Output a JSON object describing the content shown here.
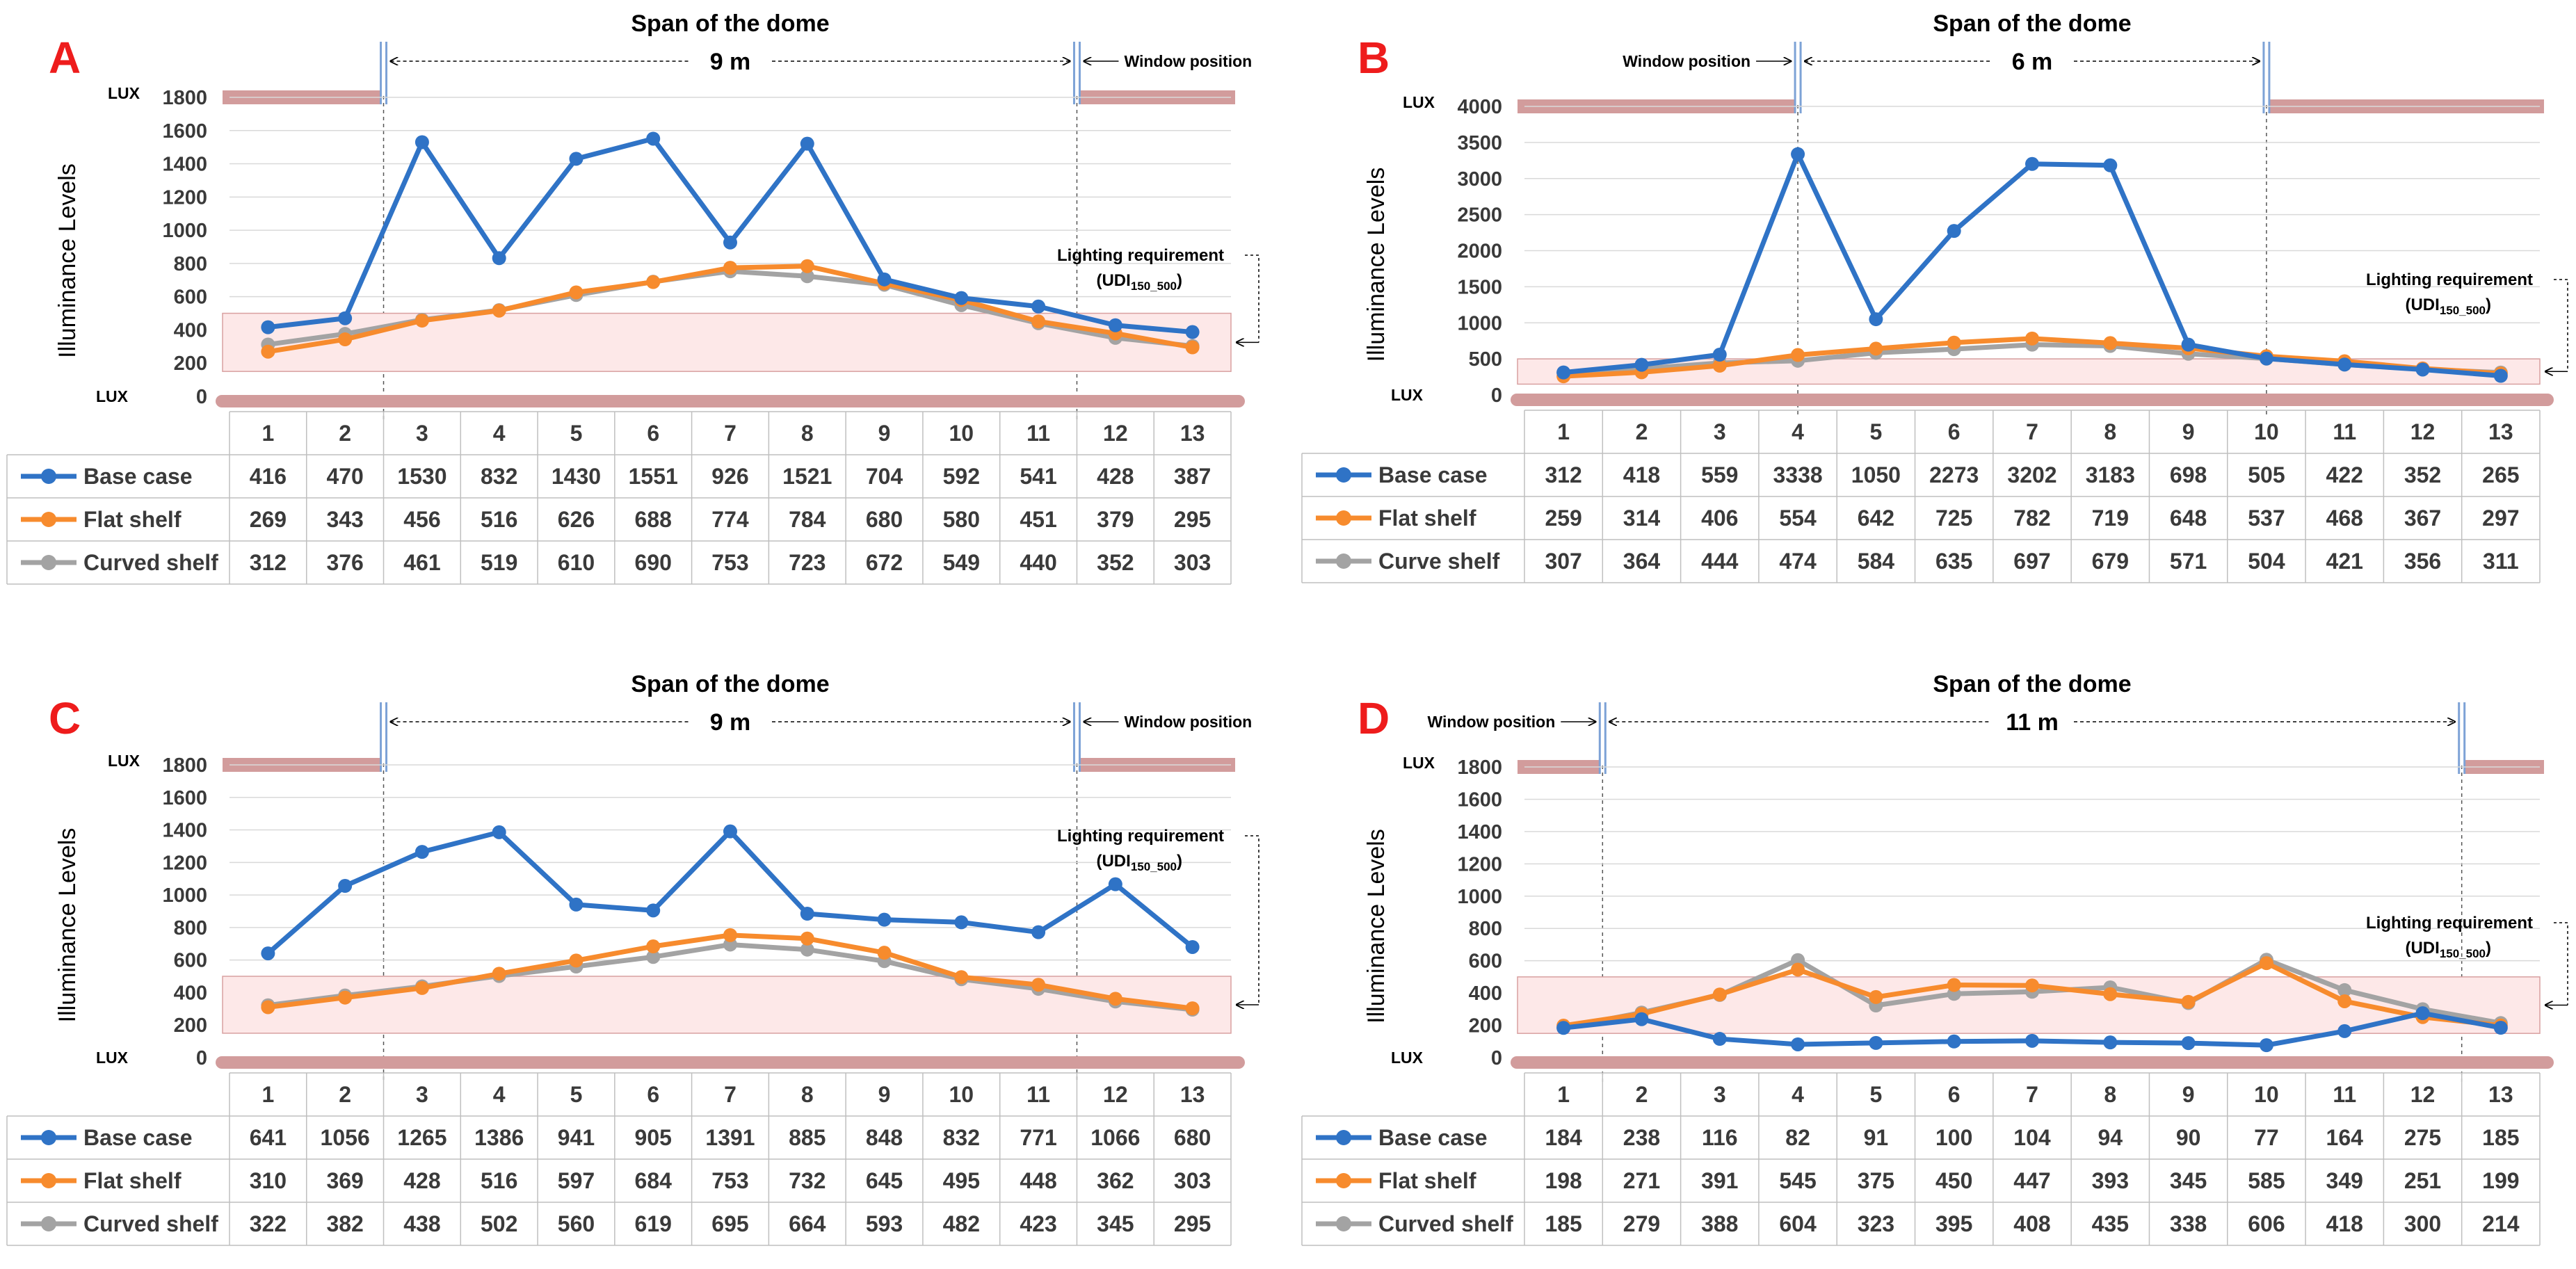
{
  "colors": {
    "base": "#2f73c6",
    "flat": "#f78b2d",
    "curved": "#a3a3a3",
    "wall": "#d29c9c",
    "band_fill": "#fde8e8",
    "band_stroke": "#d8a0a0",
    "grid": "#d9d9d9",
    "table_border": "#bfbfbf",
    "panel_letter": "#ee1c1c"
  },
  "chart_data": [
    {
      "panel": "A",
      "type": "line",
      "title": "Span of the dome",
      "span_label": "9 m",
      "window_label": "Window position",
      "window_side": "right",
      "lighting_label": "Lighting requirement",
      "udi_main": "(UDI",
      "udi_sub": "150_500",
      "udi_close": ")",
      "ylabel": "Illuminance Levels",
      "lux_label": "LUX",
      "ylim": [
        0,
        1800
      ],
      "yticks": [
        "0",
        "200",
        "400",
        "600",
        "800",
        "1000",
        "1200",
        "1400",
        "1600",
        "1800"
      ],
      "band": [
        150,
        500
      ],
      "window_points": [
        2.5,
        11.5
      ],
      "categories": [
        "1",
        "2",
        "3",
        "4",
        "5",
        "6",
        "7",
        "8",
        "9",
        "10",
        "11",
        "12",
        "13"
      ],
      "series": [
        {
          "name": "Base case",
          "key": "base",
          "values": [
            416,
            470,
            1530,
            832,
            1430,
            1551,
            926,
            1521,
            704,
            592,
            541,
            428,
            387
          ]
        },
        {
          "name": "Flat shelf",
          "key": "flat",
          "values": [
            269,
            343,
            456,
            516,
            626,
            688,
            774,
            784,
            680,
            580,
            451,
            379,
            295
          ]
        },
        {
          "name": "Curved shelf",
          "key": "curved",
          "values": [
            312,
            376,
            461,
            519,
            610,
            690,
            753,
            723,
            672,
            549,
            440,
            352,
            303
          ]
        }
      ]
    },
    {
      "panel": "B",
      "type": "line",
      "title": "Span of the dome",
      "span_label": "6 m",
      "window_label": "Window position",
      "window_side": "left",
      "lighting_label": "Lighting requirement",
      "udi_main": "(UDI",
      "udi_sub": "150_500",
      "udi_close": ")",
      "ylabel": "Illuminance Levels",
      "lux_label": "LUX",
      "ylim": [
        0,
        4000
      ],
      "yticks": [
        "0",
        "500",
        "1000",
        "1500",
        "2000",
        "2500",
        "3000",
        "3500",
        "4000"
      ],
      "band": [
        150,
        500
      ],
      "window_points": [
        4.0,
        10.0
      ],
      "categories": [
        "1",
        "2",
        "3",
        "4",
        "5",
        "6",
        "7",
        "8",
        "9",
        "10",
        "11",
        "12",
        "13"
      ],
      "series": [
        {
          "name": "Base case",
          "key": "base",
          "values": [
            312,
            418,
            559,
            3338,
            1050,
            2273,
            3202,
            3183,
            698,
            505,
            422,
            352,
            265
          ]
        },
        {
          "name": "Flat shelf",
          "key": "flat",
          "values": [
            259,
            314,
            406,
            554,
            642,
            725,
            782,
            719,
            648,
            537,
            468,
            367,
            297
          ]
        },
        {
          "name": "Curve shelf",
          "key": "curved",
          "values": [
            307,
            364,
            444,
            474,
            584,
            635,
            697,
            679,
            571,
            504,
            421,
            356,
            311
          ]
        }
      ]
    },
    {
      "panel": "C",
      "type": "line",
      "title": "Span of the dome",
      "span_label": "9 m",
      "window_label": "Window position",
      "window_side": "right",
      "lighting_label": "Lighting requirement",
      "udi_main": "(UDI",
      "udi_sub": "150_500",
      "udi_close": ")",
      "ylabel": "Illuminance Levels",
      "lux_label": "LUX",
      "ylim": [
        0,
        1800
      ],
      "yticks": [
        "0",
        "200",
        "400",
        "600",
        "800",
        "1000",
        "1200",
        "1400",
        "1600",
        "1800"
      ],
      "band": [
        150,
        500
      ],
      "window_points": [
        2.5,
        11.5
      ],
      "categories": [
        "1",
        "2",
        "3",
        "4",
        "5",
        "6",
        "7",
        "8",
        "9",
        "10",
        "11",
        "12",
        "13"
      ],
      "series": [
        {
          "name": "Base case",
          "key": "base",
          "values": [
            641,
            1056,
            1265,
            1386,
            941,
            905,
            1391,
            885,
            848,
            832,
            771,
            1066,
            680
          ]
        },
        {
          "name": "Flat shelf",
          "key": "flat",
          "values": [
            310,
            369,
            428,
            516,
            597,
            684,
            753,
            732,
            645,
            495,
            448,
            362,
            303
          ]
        },
        {
          "name": "Curved shelf",
          "key": "curved",
          "values": [
            322,
            382,
            438,
            502,
            560,
            619,
            695,
            664,
            593,
            482,
            423,
            345,
            295
          ]
        }
      ]
    },
    {
      "panel": "D",
      "type": "line",
      "title": "Span of the dome",
      "span_label": "11 m",
      "window_label": "Window position",
      "window_side": "left",
      "lighting_label": "Lighting requirement",
      "udi_main": "(UDI",
      "udi_sub": "150_500",
      "udi_close": ")",
      "ylabel": "Illuminance Levels",
      "lux_label": "LUX",
      "ylim": [
        0,
        1800
      ],
      "yticks": [
        "0",
        "200",
        "400",
        "600",
        "800",
        "1000",
        "1200",
        "1400",
        "1600",
        "1800"
      ],
      "band": [
        150,
        500
      ],
      "window_points": [
        1.5,
        12.5
      ],
      "categories": [
        "1",
        "2",
        "3",
        "4",
        "5",
        "6",
        "7",
        "8",
        "9",
        "10",
        "11",
        "12",
        "13"
      ],
      "series": [
        {
          "name": "Base case",
          "key": "base",
          "values": [
            184,
            238,
            116,
            82,
            91,
            100,
            104,
            94,
            90,
            77,
            164,
            275,
            185
          ]
        },
        {
          "name": "Flat shelf",
          "key": "flat",
          "values": [
            198,
            271,
            391,
            545,
            375,
            450,
            447,
            393,
            345,
            585,
            349,
            251,
            199
          ]
        },
        {
          "name": "Curved shelf",
          "key": "curved",
          "values": [
            185,
            279,
            388,
            604,
            323,
            395,
            408,
            435,
            338,
            606,
            418,
            300,
            214
          ]
        }
      ]
    }
  ]
}
